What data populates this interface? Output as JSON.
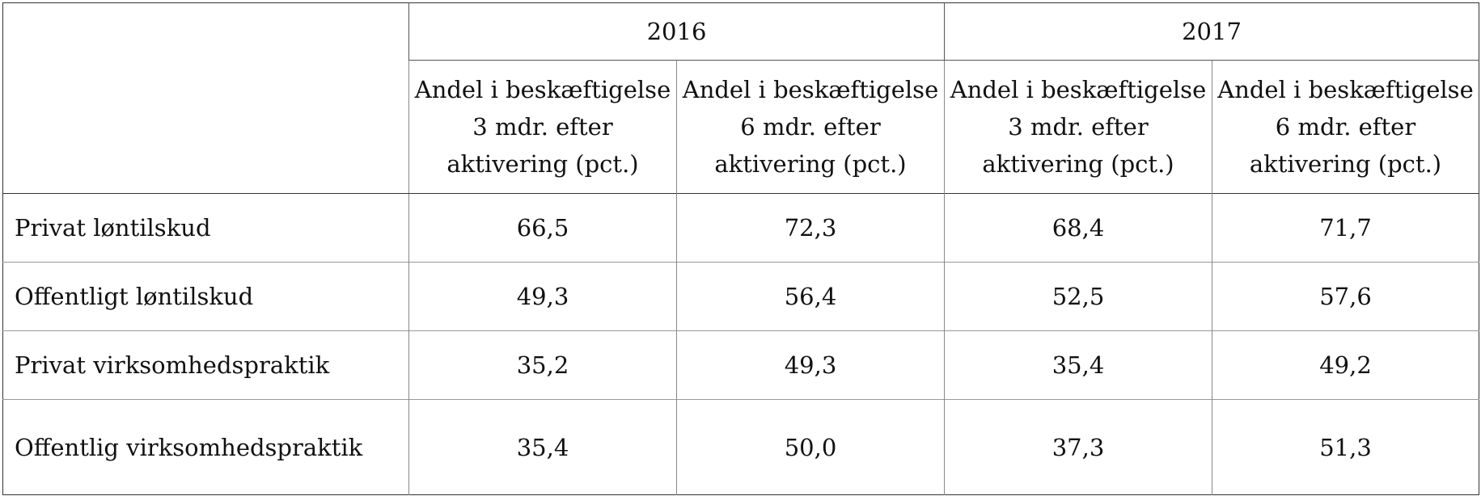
{
  "header": {
    "years": [
      "2016",
      "2017"
    ],
    "subheaders": [
      [
        "Andel i beskæftigelse",
        "3 mdr. efter",
        "aktivering (pct.)"
      ],
      [
        "Andel i beskæftigelse",
        "6 mdr. efter",
        "aktivering (pct.)"
      ],
      [
        "Andel i beskæftigelse",
        "3 mdr. efter",
        "aktivering (pct.)"
      ],
      [
        "Andel i beskæftigelse",
        "6 mdr. efter",
        "aktivering (pct.)"
      ]
    ]
  },
  "rows": [
    {
      "label": "Privat løntilskud",
      "values": [
        "66,5",
        "72,3",
        "68,4",
        "71,7"
      ]
    },
    {
      "label": "Offentligt løntilskud",
      "values": [
        "49,3",
        "56,4",
        "52,5",
        "57,6"
      ]
    },
    {
      "label": "Privat virksomhedspraktik",
      "values": [
        "35,2",
        "49,3",
        "35,4",
        "49,2"
      ]
    },
    {
      "label": "Offentlig virksomhedspraktik",
      "values": [
        "35,4",
        "50,0",
        "37,3",
        "51,3"
      ]
    }
  ]
}
